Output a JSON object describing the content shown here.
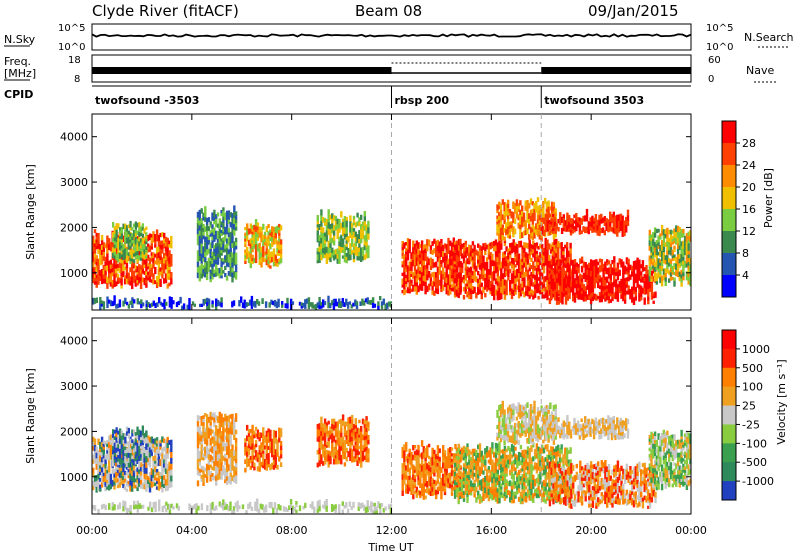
{
  "header": {
    "station": "Clyde River (fitACF)",
    "beam": "Beam 08",
    "date": "09/Jan/2015"
  },
  "panels": {
    "nsky": {
      "left_label": "N.Sky",
      "left_ticks": [
        "10^5",
        "10^0"
      ],
      "right_ticks": [
        "10^5",
        "10^0"
      ],
      "right_label": "N.Search"
    },
    "freq": {
      "left_label_line1": "Freq.",
      "left_label_line2": "[MHz]",
      "left_ticks": [
        "18",
        "8"
      ],
      "right_ticks": [
        "60",
        "0"
      ],
      "right_label": "Nave"
    },
    "cpid": {
      "label": "CPID",
      "segments": [
        {
          "name": "twofsound -3503",
          "start_hr": 0
        },
        {
          "name": "rbsp 200",
          "start_hr": 12
        },
        {
          "name": "twofsound 3503",
          "start_hr": 18
        }
      ]
    }
  },
  "chart_data": [
    {
      "type": "heatmap",
      "panel": "power",
      "ylabel": "Slant Range [km]",
      "ylim": [
        180,
        4500
      ],
      "yticks": [
        "1000",
        "2000",
        "3000",
        "4000"
      ],
      "colorbar_label": "Power [dB]",
      "colorbar_ticks": [
        "28",
        "24",
        "20",
        "16",
        "12",
        "8",
        "4"
      ],
      "colorscale": [
        "#0000ff",
        "#2455b0",
        "#3a8a50",
        "#7acc40",
        "#f0c000",
        "#ff8c00",
        "#ff4000",
        "#ff0000"
      ],
      "clim": [
        0,
        32
      ]
    },
    {
      "type": "heatmap",
      "panel": "velocity",
      "ylabel": "Slant Range [km]",
      "ylim": [
        180,
        4500
      ],
      "yticks": [
        "1000",
        "2000",
        "3000",
        "4000"
      ],
      "xlabel": "Time UT",
      "xticks": [
        "00:00",
        "04:00",
        "08:00",
        "12:00",
        "16:00",
        "20:00",
        "00:00"
      ],
      "xlim_hours": [
        0,
        24
      ],
      "colorbar_label": "Velocity [m s⁻¹]",
      "colorbar_ticks": [
        "1000",
        "500",
        "100",
        "25",
        "-25",
        "-100",
        "-500",
        "-1000"
      ],
      "colorscale": [
        "#2040c0",
        "#2e8a5a",
        "#3aa050",
        "#8acc40",
        "#c8c8c8",
        "#f0a020",
        "#ff8000",
        "#ff2000",
        "#ff0000"
      ]
    }
  ]
}
